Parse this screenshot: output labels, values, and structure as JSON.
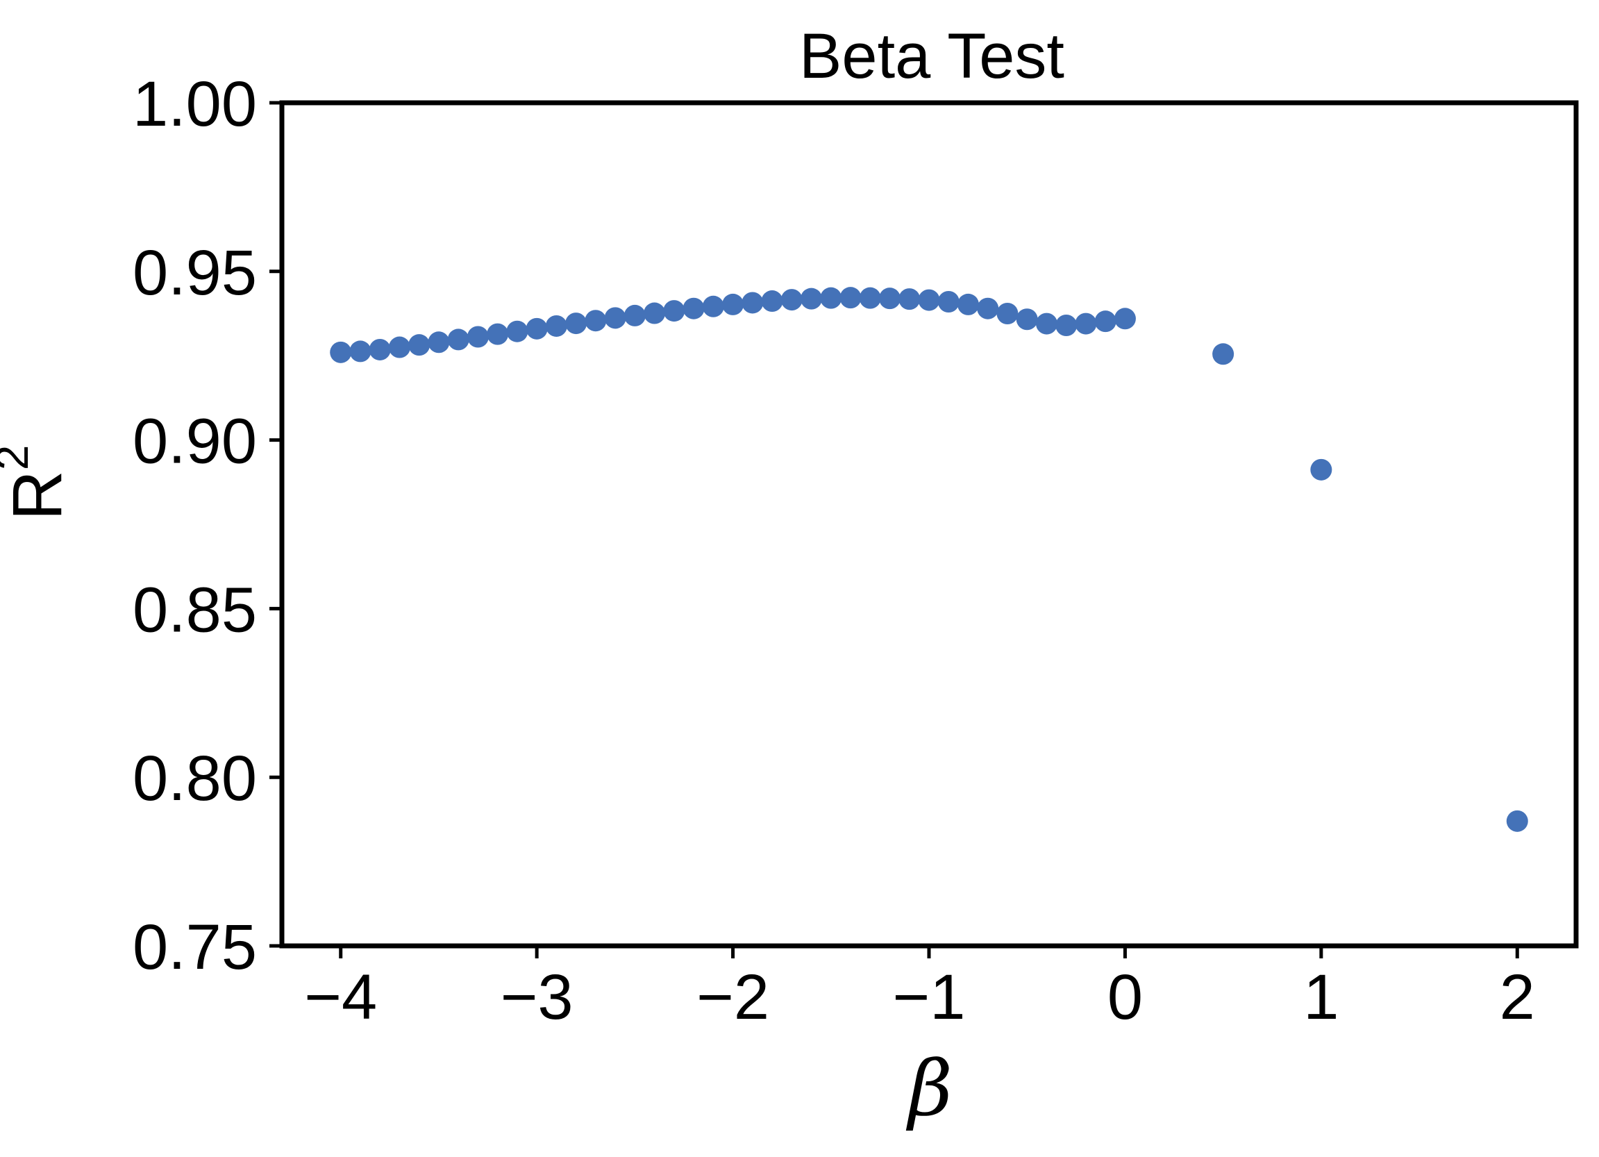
{
  "chart_data": {
    "type": "scatter",
    "title": "Beta Test",
    "xlabel": "β",
    "ylabel": "R",
    "ylabel_superscript": "2",
    "xlim": [
      -4.3,
      2.3
    ],
    "ylim": [
      0.75,
      1.0
    ],
    "x_ticks": [
      -4,
      -3,
      -2,
      -1,
      0,
      1,
      2
    ],
    "x_tick_labels": [
      "−4",
      "−3",
      "−2",
      "−1",
      "0",
      "1",
      "2"
    ],
    "y_ticks": [
      0.75,
      0.8,
      0.85,
      0.9,
      0.95,
      1.0
    ],
    "y_tick_labels": [
      "0.75",
      "0.80",
      "0.85",
      "0.90",
      "0.95",
      "1.00"
    ],
    "grid": false,
    "marker_color": "#4472b8",
    "series": [
      {
        "x": [
          -4.0,
          -3.9,
          -3.8,
          -3.7,
          -3.6,
          -3.5,
          -3.4,
          -3.3,
          -3.2,
          -3.1,
          -3.0,
          -2.9,
          -2.8,
          -2.7,
          -2.6,
          -2.5,
          -2.4,
          -2.3,
          -2.2,
          -2.1,
          -2.0,
          -1.9,
          -1.8,
          -1.7,
          -1.6,
          -1.5,
          -1.4,
          -1.3,
          -1.2,
          -1.1,
          -1.0,
          -0.9,
          -0.8,
          -0.7,
          -0.6,
          -0.5,
          -0.4,
          -0.3,
          -0.2,
          -0.1,
          0.0,
          0.5,
          1.0,
          2.0
        ],
        "y": [
          0.926,
          0.9263,
          0.9268,
          0.9275,
          0.9282,
          0.929,
          0.9298,
          0.9306,
          0.9314,
          0.9322,
          0.933,
          0.9338,
          0.9346,
          0.9354,
          0.9362,
          0.9369,
          0.9376,
          0.9383,
          0.939,
          0.9396,
          0.9402,
          0.9407,
          0.9412,
          0.9416,
          0.9419,
          0.9421,
          0.9422,
          0.9421,
          0.942,
          0.9418,
          0.9415,
          0.941,
          0.9402,
          0.939,
          0.9375,
          0.9358,
          0.9345,
          0.934,
          0.9345,
          0.9352,
          0.936,
          0.9255,
          0.8912,
          0.787
        ]
      }
    ]
  }
}
